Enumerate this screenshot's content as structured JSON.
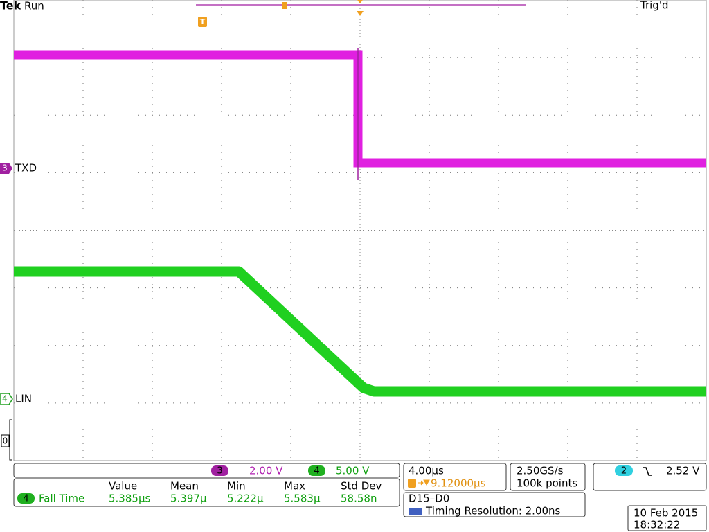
{
  "header": {
    "brand": "Tek",
    "status": "Run",
    "trigger_state": "Trig'd"
  },
  "trigger_marker": "T",
  "channels": [
    {
      "number": "3",
      "label": "TXD"
    },
    {
      "number": "4",
      "label": "LIN"
    }
  ],
  "reference_marker": "0",
  "vertical_scale": [
    {
      "channel": "3",
      "scale": "2.00 V"
    },
    {
      "channel": "4",
      "scale": "5.00 V"
    }
  ],
  "measurement": {
    "headers": [
      "Value",
      "Mean",
      "Min",
      "Max",
      "Std Dev"
    ],
    "channel": "4",
    "name": "Fall Time",
    "values": [
      "5.385µs",
      "5.397µ",
      "5.222µ",
      "5.583µ",
      "58.58n"
    ]
  },
  "timebase": {
    "scale": "4.00µs",
    "trigger_position": "9.12000µs"
  },
  "acquisition": {
    "sample_rate": "2.50GS/s",
    "record_length": "100k points"
  },
  "trigger": {
    "channel": "2",
    "level": "2.52 V"
  },
  "digital": {
    "channels": "D15–D0",
    "timing_resolution": "Timing Resolution: 2.00ns"
  },
  "datetime": {
    "date": "10 Feb 2015",
    "time": "18:32:22"
  }
}
